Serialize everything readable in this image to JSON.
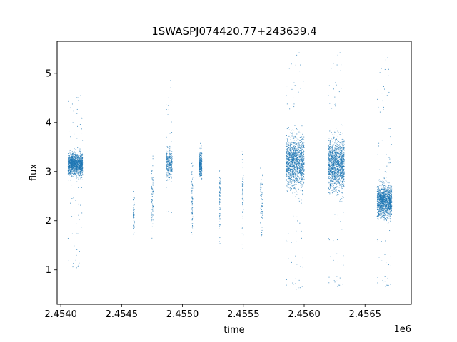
{
  "chart_data": {
    "type": "scatter",
    "title": "1SWASPJ074420.77+243639.4",
    "xlabel": "time",
    "ylabel": "flux",
    "x_offset_label": "1e6",
    "xlim": [
      2453970,
      2456880
    ],
    "ylim": [
      0.3,
      5.65
    ],
    "x_ticks": [
      2454000,
      2454500,
      2455000,
      2455500,
      2456000,
      2456500
    ],
    "x_tick_labels": [
      "2.4540",
      "2.4545",
      "2.4550",
      "2.4555",
      "2.4560",
      "2.4565"
    ],
    "y_ticks": [
      1,
      2,
      3,
      4,
      5
    ],
    "y_tick_labels": [
      "1",
      "2",
      "3",
      "4",
      "5"
    ],
    "grid": false,
    "marker_color": "#1f77b4",
    "series": [
      {
        "clusters": [
          {
            "x_range": [
              2454060,
              2454180
            ],
            "y_center": 3.15,
            "y_spread": 0.18,
            "outlier_range": [
              1.0,
              4.6
            ],
            "density": "high"
          },
          {
            "x_range": [
              2454595,
              2454605
            ],
            "y_center": 2.1,
            "y_spread": 0.35,
            "outlier_range": [
              1.7,
              2.7
            ],
            "density": "low"
          },
          {
            "x_range": [
              2454745,
              2454760
            ],
            "y_center": 2.5,
            "y_spread": 0.6,
            "outlier_range": [
              1.55,
              3.35
            ],
            "density": "low"
          },
          {
            "x_range": [
              2454865,
              2454915
            ],
            "y_center": 3.15,
            "y_spread": 0.25,
            "outlier_range": [
              2.1,
              4.9
            ],
            "density": "medium"
          },
          {
            "x_range": [
              2455075,
              2455085
            ],
            "y_center": 2.4,
            "y_spread": 0.7,
            "outlier_range": [
              1.7,
              3.2
            ],
            "density": "low"
          },
          {
            "x_range": [
              2455135,
              2455160
            ],
            "y_center": 3.15,
            "y_spread": 0.2,
            "outlier_range": [
              2.7,
              3.6
            ],
            "density": "medium"
          },
          {
            "x_range": [
              2455300,
              2455312
            ],
            "y_center": 2.4,
            "y_spread": 0.55,
            "outlier_range": [
              1.5,
              3.5
            ],
            "density": "low"
          },
          {
            "x_range": [
              2455490,
              2455500
            ],
            "y_center": 2.5,
            "y_spread": 0.6,
            "outlier_range": [
              1.4,
              3.85
            ],
            "density": "low"
          },
          {
            "x_range": [
              2455640,
              2455660
            ],
            "y_center": 2.4,
            "y_spread": 0.5,
            "outlier_range": [
              1.5,
              3.1
            ],
            "density": "low"
          },
          {
            "x_range": [
              2455850,
              2456000
            ],
            "y_center": 3.2,
            "y_spread": 0.45,
            "outlier_range": [
              0.55,
              5.5
            ],
            "density": "high"
          },
          {
            "x_range": [
              2456200,
              2456330
            ],
            "y_center": 3.15,
            "y_spread": 0.45,
            "outlier_range": [
              0.6,
              5.5
            ],
            "density": "high"
          },
          {
            "x_range": [
              2456600,
              2456720
            ],
            "y_center": 2.4,
            "y_spread": 0.28,
            "outlier_range": [
              0.6,
              5.4
            ],
            "density": "high"
          }
        ]
      }
    ]
  }
}
